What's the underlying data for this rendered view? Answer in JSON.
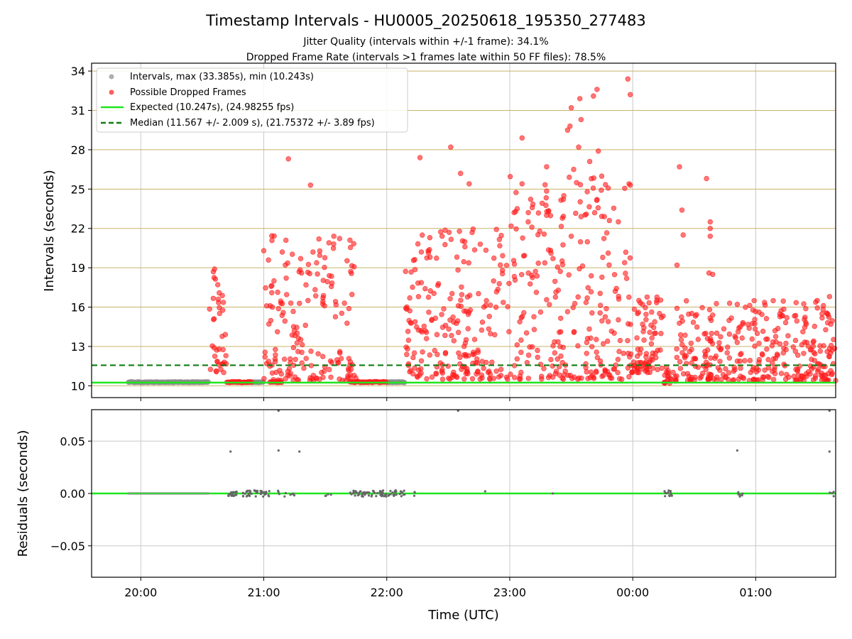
{
  "chart_data": {
    "type": "scatter",
    "title": "Timestamp Intervals - HU0005_20250618_195350_277483",
    "subtitle_lines": [
      "Jitter Quality (intervals within +/-1 frame): 34.1%",
      "Dropped Frame Rate (intervals >1 frames late within 50 FF files): 78.5%"
    ],
    "xlabel": "Time (UTC)",
    "xlim_hours": [
      19.6,
      25.65
    ],
    "x_ticks": [
      {
        "hour": 20,
        "label": "20:00"
      },
      {
        "hour": 21,
        "label": "21:00"
      },
      {
        "hour": 22,
        "label": "22:00"
      },
      {
        "hour": 23,
        "label": "23:00"
      },
      {
        "hour": 24,
        "label": "00:00"
      },
      {
        "hour": 25,
        "label": "01:00"
      }
    ],
    "top": {
      "ylabel": "Intervals (seconds)",
      "ylim": [
        9.1,
        34.6
      ],
      "y_ticks": [
        10,
        13,
        16,
        19,
        22,
        25,
        28,
        31,
        34
      ],
      "expected": 10.247,
      "median": 11.567,
      "legend": [
        "Intervals, max (33.385s), min (10.243s)",
        "Possible Dropped Frames",
        "Expected (10.247s), (24.98255 fps)",
        "Median (11.567 +/- 2.009 s), (21.75372 +/- 3.89 fps)"
      ],
      "gray_runs": [
        [
          19.9,
          20.55
        ],
        [
          20.9,
          21.0
        ],
        [
          22.0,
          22.15
        ]
      ],
      "red_base_runs": [
        [
          20.7,
          20.9
        ],
        [
          21.05,
          21.15
        ],
        [
          21.7,
          22.0
        ]
      ],
      "red_clusters": [
        {
          "start": 20.55,
          "end": 20.7,
          "lo": 11.0,
          "hi": 19.0,
          "n": 35
        },
        {
          "start": 21.0,
          "end": 21.75,
          "lo": 10.4,
          "hi": 21.5,
          "n": 170
        },
        {
          "start": 22.15,
          "end": 23.0,
          "lo": 10.5,
          "hi": 22.0,
          "n": 220
        },
        {
          "start": 23.0,
          "end": 23.98,
          "lo": 10.5,
          "hi": 26.0,
          "n": 240
        },
        {
          "start": 23.98,
          "end": 24.25,
          "lo": 11.0,
          "hi": 17.0,
          "n": 80
        },
        {
          "start": 24.25,
          "end": 24.35,
          "lo": 10.2,
          "hi": 11.5,
          "n": 20
        },
        {
          "start": 24.35,
          "end": 25.65,
          "lo": 10.4,
          "hi": 16.5,
          "n": 330
        }
      ],
      "red_outliers": [
        [
          20.6,
          18.9
        ],
        [
          20.59,
          18.7
        ],
        [
          20.63,
          16.6
        ],
        [
          21.2,
          27.3
        ],
        [
          21.38,
          25.3
        ],
        [
          21.18,
          21.1
        ],
        [
          21.15,
          20.2
        ],
        [
          21.4,
          20.2
        ],
        [
          21.57,
          21.4
        ],
        [
          21.53,
          20.9
        ],
        [
          21.0,
          20.3
        ],
        [
          21.3,
          19.7
        ],
        [
          22.27,
          27.4
        ],
        [
          22.52,
          28.2
        ],
        [
          22.6,
          26.2
        ],
        [
          22.67,
          25.4
        ],
        [
          22.35,
          21.3
        ],
        [
          22.45,
          21.4
        ],
        [
          22.76,
          20.8
        ],
        [
          23.06,
          23.5
        ],
        [
          23.1,
          28.9
        ],
        [
          23.1,
          25.4
        ],
        [
          23.15,
          22.5
        ],
        [
          23.18,
          22.1
        ],
        [
          23.3,
          23.0
        ],
        [
          23.3,
          26.7
        ],
        [
          23.5,
          21.4
        ],
        [
          23.52,
          26.5
        ],
        [
          23.47,
          29.5
        ],
        [
          23.49,
          29.8
        ],
        [
          23.5,
          31.2
        ],
        [
          23.57,
          31.9
        ],
        [
          23.56,
          28.2
        ],
        [
          23.58,
          30.3
        ],
        [
          23.68,
          32.1
        ],
        [
          23.71,
          32.6
        ],
        [
          23.65,
          27.1
        ],
        [
          23.72,
          27.9
        ],
        [
          23.63,
          24.8
        ],
        [
          23.71,
          24.2
        ],
        [
          23.58,
          22.9
        ],
        [
          23.69,
          23.2
        ],
        [
          23.77,
          22.9
        ],
        [
          23.81,
          22.6
        ],
        [
          23.96,
          33.4
        ],
        [
          23.98,
          32.2
        ],
        [
          23.97,
          25.4
        ],
        [
          23.98,
          25.3
        ],
        [
          24.05,
          16.5
        ],
        [
          24.08,
          16.2
        ],
        [
          24.38,
          26.7
        ],
        [
          24.4,
          23.4
        ],
        [
          24.41,
          21.5
        ],
        [
          24.36,
          19.2
        ],
        [
          24.6,
          25.8
        ],
        [
          24.63,
          22.5
        ],
        [
          24.63,
          22.0
        ],
        [
          24.63,
          21.4
        ],
        [
          24.62,
          18.6
        ],
        [
          24.65,
          18.5
        ],
        [
          25.5,
          16.5
        ],
        [
          25.6,
          16.8
        ],
        [
          25.58,
          15.5
        ]
      ]
    },
    "bottom": {
      "ylabel": "Residuals (seconds)",
      "ylim": [
        -0.08,
        0.08
      ],
      "y_ticks": [
        -0.05,
        0.0,
        0.05
      ],
      "y_tick_labels": [
        "−0.05",
        "0.00",
        "0.05"
      ],
      "zero_line_range": [
        19.6,
        25.65
      ],
      "green_run": [
        19.9,
        20.55
      ],
      "outliers": [
        [
          20.73,
          0.04
        ],
        [
          21.12,
          0.079
        ],
        [
          21.12,
          0.041
        ],
        [
          21.29,
          0.04
        ],
        [
          22.58,
          0.079
        ],
        [
          24.85,
          0.041
        ],
        [
          25.6,
          0.04
        ],
        [
          25.6,
          0.079
        ],
        [
          22.8,
          0.002
        ],
        [
          23.35,
          0.0
        ]
      ],
      "gray_clusters": [
        {
          "start": 20.7,
          "end": 21.05,
          "n": 60
        },
        {
          "start": 21.1,
          "end": 21.3,
          "n": 10
        },
        {
          "start": 21.5,
          "end": 21.55,
          "n": 4
        },
        {
          "start": 21.7,
          "end": 22.15,
          "n": 80
        },
        {
          "start": 22.2,
          "end": 22.25,
          "n": 3
        },
        {
          "start": 24.25,
          "end": 24.32,
          "n": 12
        },
        {
          "start": 24.85,
          "end": 24.9,
          "n": 6
        },
        {
          "start": 25.6,
          "end": 25.65,
          "n": 4
        }
      ]
    },
    "colors": {
      "gray": "#8c8c8c",
      "red": "#ff1a1a",
      "expected": "#1ee61e",
      "median": "#0f7d0f",
      "hgrid": "#c9b36a",
      "vgrid": "#c8c8c8",
      "residual_dot": "#666666"
    }
  }
}
